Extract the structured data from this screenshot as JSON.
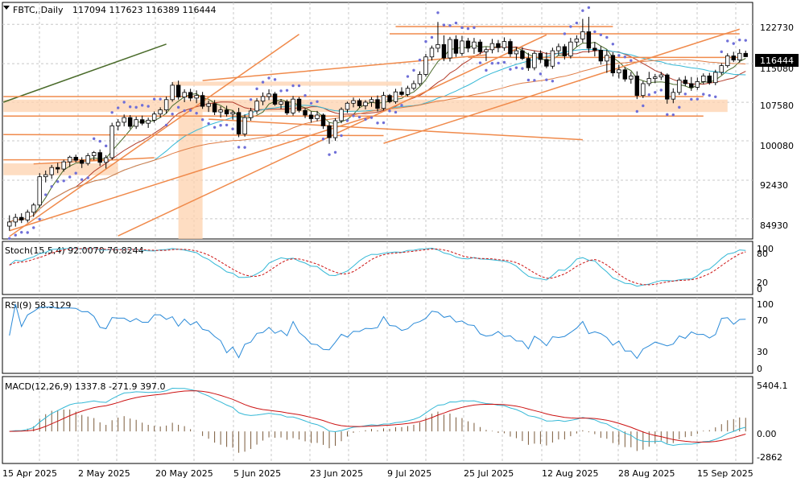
{
  "header": {
    "symbol": "FBTC,,Daily",
    "ohlc": "117094 117623 116389 116444"
  },
  "colors": {
    "bull": "#ffffff",
    "bear": "#000000",
    "grid": "#c8c8c8",
    "orange": "#f08a4b",
    "zone": "#fdd2ad",
    "sar": "#6f6fd8",
    "ma_fast": "#b23b2a",
    "ma_mid": "#34b8d6",
    "ma_slow": "#e07d45",
    "trend_dark": "#4a6b2a",
    "signal_red": "#cc1111",
    "macd_hist": "#7a5a3a"
  },
  "price_axis": {
    "ticks": [
      "122730",
      "115080",
      "107580",
      "100080",
      "92430",
      "84930"
    ],
    "current_label": "116444"
  },
  "date_axis": [
    "15 Apr 2025",
    "2 May 2025",
    "20 May 2025",
    "5 Jun 2025",
    "23 Jun 2025",
    "9 Jul 2025",
    "25 Jul 2025",
    "12 Aug 2025",
    "28 Aug 2025",
    "15 Sep 2025"
  ],
  "stoch": {
    "label": "Stoch(15,5,4) 92.0070 76.8244",
    "ticks": [
      "100",
      "80",
      "20",
      "0"
    ]
  },
  "rsi": {
    "label": "RSI(9) 58.3129",
    "ticks": [
      "100",
      "70",
      "30",
      "0"
    ]
  },
  "macd": {
    "label": "MACD(12,26,9) 1337.8 -271.9 397.0",
    "ticks": [
      "5404.1",
      "0.00",
      "-2862"
    ]
  },
  "chart_data": {
    "type": "candlestick",
    "title": "FBTC,,Daily 117094 117623 116389 116444",
    "ylim": [
      81000,
      127000
    ],
    "grid": true,
    "ohlc_last": {
      "open": 117094,
      "high": 117623,
      "low": 116389,
      "close": 116444
    },
    "candles": [
      {
        "o": 83500,
        "h": 85600,
        "l": 82600,
        "c": 84300
      },
      {
        "o": 84300,
        "h": 85900,
        "l": 83400,
        "c": 85200
      },
      {
        "o": 85200,
        "h": 86000,
        "l": 84100,
        "c": 84700
      },
      {
        "o": 84700,
        "h": 86700,
        "l": 84200,
        "c": 86200
      },
      {
        "o": 86200,
        "h": 88000,
        "l": 85300,
        "c": 87600
      },
      {
        "o": 87600,
        "h": 93800,
        "l": 87100,
        "c": 93100
      },
      {
        "o": 93100,
        "h": 94300,
        "l": 92000,
        "c": 93500
      },
      {
        "o": 93500,
        "h": 95400,
        "l": 92700,
        "c": 94900
      },
      {
        "o": 94900,
        "h": 95800,
        "l": 93800,
        "c": 94600
      },
      {
        "o": 94600,
        "h": 96400,
        "l": 94100,
        "c": 96000
      },
      {
        "o": 96000,
        "h": 97200,
        "l": 95000,
        "c": 96900
      },
      {
        "o": 96900,
        "h": 97400,
        "l": 95900,
        "c": 96300
      },
      {
        "o": 96300,
        "h": 96900,
        "l": 94800,
        "c": 95700
      },
      {
        "o": 95700,
        "h": 97700,
        "l": 95300,
        "c": 97200
      },
      {
        "o": 97200,
        "h": 98100,
        "l": 96300,
        "c": 97800
      },
      {
        "o": 97800,
        "h": 98400,
        "l": 95200,
        "c": 95900
      },
      {
        "o": 95900,
        "h": 97300,
        "l": 94700,
        "c": 96800
      },
      {
        "o": 96800,
        "h": 103600,
        "l": 96400,
        "c": 103000
      },
      {
        "o": 103000,
        "h": 104300,
        "l": 102100,
        "c": 103700
      },
      {
        "o": 103700,
        "h": 105200,
        "l": 102900,
        "c": 104600
      },
      {
        "o": 104600,
        "h": 105100,
        "l": 102400,
        "c": 102900
      },
      {
        "o": 102900,
        "h": 104800,
        "l": 102400,
        "c": 104200
      },
      {
        "o": 104200,
        "h": 105000,
        "l": 103100,
        "c": 103500
      },
      {
        "o": 103500,
        "h": 104600,
        "l": 102600,
        "c": 104100
      },
      {
        "o": 104100,
        "h": 105800,
        "l": 103600,
        "c": 105300
      },
      {
        "o": 105300,
        "h": 106600,
        "l": 104600,
        "c": 106100
      },
      {
        "o": 106100,
        "h": 108700,
        "l": 105400,
        "c": 108100
      },
      {
        "o": 108100,
        "h": 111500,
        "l": 107700,
        "c": 110900
      },
      {
        "o": 110900,
        "h": 111800,
        "l": 108100,
        "c": 108600
      },
      {
        "o": 108600,
        "h": 110100,
        "l": 107600,
        "c": 109500
      },
      {
        "o": 109500,
        "h": 110200,
        "l": 107800,
        "c": 108400
      },
      {
        "o": 108400,
        "h": 109900,
        "l": 107400,
        "c": 108900
      },
      {
        "o": 108900,
        "h": 109600,
        "l": 106300,
        "c": 106800
      },
      {
        "o": 106800,
        "h": 107900,
        "l": 105700,
        "c": 107300
      },
      {
        "o": 107300,
        "h": 108000,
        "l": 105100,
        "c": 105700
      },
      {
        "o": 105700,
        "h": 106800,
        "l": 104600,
        "c": 106100
      },
      {
        "o": 106100,
        "h": 106900,
        "l": 104800,
        "c": 105300
      },
      {
        "o": 105300,
        "h": 106000,
        "l": 104200,
        "c": 105600
      },
      {
        "o": 105600,
        "h": 106500,
        "l": 100800,
        "c": 101400
      },
      {
        "o": 101400,
        "h": 105200,
        "l": 100900,
        "c": 104600
      },
      {
        "o": 104600,
        "h": 106500,
        "l": 104000,
        "c": 105900
      },
      {
        "o": 105900,
        "h": 108400,
        "l": 105300,
        "c": 107800
      },
      {
        "o": 107800,
        "h": 109500,
        "l": 107000,
        "c": 108700
      },
      {
        "o": 108700,
        "h": 110100,
        "l": 108000,
        "c": 109200
      },
      {
        "o": 109200,
        "h": 109600,
        "l": 106900,
        "c": 107200
      },
      {
        "o": 107200,
        "h": 108200,
        "l": 106300,
        "c": 107700
      },
      {
        "o": 107700,
        "h": 108100,
        "l": 105100,
        "c": 105500
      },
      {
        "o": 105500,
        "h": 108800,
        "l": 105000,
        "c": 108200
      },
      {
        "o": 108200,
        "h": 108600,
        "l": 105600,
        "c": 106000
      },
      {
        "o": 106000,
        "h": 106500,
        "l": 104500,
        "c": 105100
      },
      {
        "o": 105100,
        "h": 105800,
        "l": 103600,
        "c": 104400
      },
      {
        "o": 104400,
        "h": 105900,
        "l": 103900,
        "c": 105100
      },
      {
        "o": 105100,
        "h": 105400,
        "l": 102400,
        "c": 103000
      },
      {
        "o": 103000,
        "h": 103700,
        "l": 99500,
        "c": 100700
      },
      {
        "o": 100700,
        "h": 104500,
        "l": 100100,
        "c": 104000
      },
      {
        "o": 104000,
        "h": 106600,
        "l": 103500,
        "c": 106200
      },
      {
        "o": 106200,
        "h": 107700,
        "l": 105500,
        "c": 107400
      },
      {
        "o": 107400,
        "h": 108500,
        "l": 106600,
        "c": 107900
      },
      {
        "o": 107900,
        "h": 108300,
        "l": 106500,
        "c": 106900
      },
      {
        "o": 106900,
        "h": 108000,
        "l": 106200,
        "c": 107600
      },
      {
        "o": 107600,
        "h": 108600,
        "l": 106700,
        "c": 108100
      },
      {
        "o": 108100,
        "h": 108900,
        "l": 105800,
        "c": 106400
      },
      {
        "o": 106400,
        "h": 109600,
        "l": 106000,
        "c": 108900
      },
      {
        "o": 108900,
        "h": 109200,
        "l": 107400,
        "c": 107700
      },
      {
        "o": 107700,
        "h": 110200,
        "l": 107300,
        "c": 109600
      },
      {
        "o": 109600,
        "h": 110500,
        "l": 108800,
        "c": 109100
      },
      {
        "o": 109100,
        "h": 110800,
        "l": 108700,
        "c": 110300
      },
      {
        "o": 110300,
        "h": 111800,
        "l": 109900,
        "c": 111200
      },
      {
        "o": 111200,
        "h": 113600,
        "l": 110800,
        "c": 113000
      },
      {
        "o": 113000,
        "h": 117000,
        "l": 112600,
        "c": 116400
      },
      {
        "o": 116400,
        "h": 118600,
        "l": 115700,
        "c": 118100
      },
      {
        "o": 118100,
        "h": 123200,
        "l": 117300,
        "c": 118800
      },
      {
        "o": 118800,
        "h": 120600,
        "l": 115600,
        "c": 116200
      },
      {
        "o": 116200,
        "h": 120300,
        "l": 115500,
        "c": 119800
      },
      {
        "o": 119800,
        "h": 120600,
        "l": 116400,
        "c": 117100
      },
      {
        "o": 117100,
        "h": 120500,
        "l": 116600,
        "c": 119500
      },
      {
        "o": 119500,
        "h": 120100,
        "l": 117300,
        "c": 118100
      },
      {
        "o": 118100,
        "h": 120100,
        "l": 117000,
        "c": 119300
      },
      {
        "o": 119300,
        "h": 119800,
        "l": 116900,
        "c": 117400
      },
      {
        "o": 117400,
        "h": 118300,
        "l": 115600,
        "c": 117800
      },
      {
        "o": 117800,
        "h": 119900,
        "l": 117100,
        "c": 119000
      },
      {
        "o": 119000,
        "h": 119700,
        "l": 117300,
        "c": 118200
      },
      {
        "o": 118200,
        "h": 120200,
        "l": 117600,
        "c": 119400
      },
      {
        "o": 119400,
        "h": 119900,
        "l": 116400,
        "c": 117000
      },
      {
        "o": 117000,
        "h": 118300,
        "l": 115800,
        "c": 117600
      },
      {
        "o": 117600,
        "h": 118300,
        "l": 115800,
        "c": 116100
      },
      {
        "o": 116100,
        "h": 117200,
        "l": 113700,
        "c": 114300
      },
      {
        "o": 114300,
        "h": 117600,
        "l": 113800,
        "c": 117100
      },
      {
        "o": 117100,
        "h": 117700,
        "l": 115200,
        "c": 115900
      },
      {
        "o": 115900,
        "h": 117300,
        "l": 114200,
        "c": 114600
      },
      {
        "o": 114600,
        "h": 118200,
        "l": 114100,
        "c": 117600
      },
      {
        "o": 117600,
        "h": 119000,
        "l": 116700,
        "c": 118400
      },
      {
        "o": 118400,
        "h": 118900,
        "l": 115900,
        "c": 116600
      },
      {
        "o": 116600,
        "h": 120100,
        "l": 116100,
        "c": 119300
      },
      {
        "o": 119300,
        "h": 120600,
        "l": 118400,
        "c": 119900
      },
      {
        "o": 119900,
        "h": 123800,
        "l": 119200,
        "c": 121300
      },
      {
        "o": 121300,
        "h": 124200,
        "l": 117200,
        "c": 118100
      },
      {
        "o": 118100,
        "h": 119300,
        "l": 116500,
        "c": 117700
      },
      {
        "o": 117700,
        "h": 118500,
        "l": 114900,
        "c": 115600
      },
      {
        "o": 115600,
        "h": 117800,
        "l": 113300,
        "c": 116700
      },
      {
        "o": 116700,
        "h": 117300,
        "l": 112600,
        "c": 113300
      },
      {
        "o": 113300,
        "h": 114900,
        "l": 112200,
        "c": 113900
      },
      {
        "o": 113900,
        "h": 114400,
        "l": 111600,
        "c": 112100
      },
      {
        "o": 112100,
        "h": 113500,
        "l": 111200,
        "c": 112700
      },
      {
        "o": 112700,
        "h": 113600,
        "l": 108200,
        "c": 108900
      },
      {
        "o": 108900,
        "h": 111700,
        "l": 108400,
        "c": 111200
      },
      {
        "o": 111200,
        "h": 113500,
        "l": 110700,
        "c": 112200
      },
      {
        "o": 112200,
        "h": 113100,
        "l": 111300,
        "c": 112500
      },
      {
        "o": 112500,
        "h": 113500,
        "l": 111900,
        "c": 112900
      },
      {
        "o": 112900,
        "h": 113200,
        "l": 107300,
        "c": 108200
      },
      {
        "o": 108200,
        "h": 110300,
        "l": 107400,
        "c": 109500
      },
      {
        "o": 109500,
        "h": 112400,
        "l": 109000,
        "c": 111900
      },
      {
        "o": 111900,
        "h": 112700,
        "l": 110700,
        "c": 111200
      },
      {
        "o": 111200,
        "h": 112500,
        "l": 109800,
        "c": 110500
      },
      {
        "o": 110500,
        "h": 112400,
        "l": 110000,
        "c": 111600
      },
      {
        "o": 111600,
        "h": 113200,
        "l": 111100,
        "c": 112700
      },
      {
        "o": 112700,
        "h": 113300,
        "l": 111000,
        "c": 111400
      },
      {
        "o": 111400,
        "h": 113900,
        "l": 110900,
        "c": 113400
      },
      {
        "o": 113400,
        "h": 115200,
        "l": 112900,
        "c": 114700
      },
      {
        "o": 114700,
        "h": 117100,
        "l": 114300,
        "c": 116600
      },
      {
        "o": 116600,
        "h": 117400,
        "l": 115400,
        "c": 115800
      },
      {
        "o": 115800,
        "h": 117900,
        "l": 115300,
        "c": 117100
      },
      {
        "o": 117100,
        "h": 117623,
        "l": 116389,
        "c": 116444
      }
    ],
    "lower_panels": [
      "Stoch(15,5,4)",
      "RSI(9)",
      "MACD(12,26,9)"
    ]
  }
}
